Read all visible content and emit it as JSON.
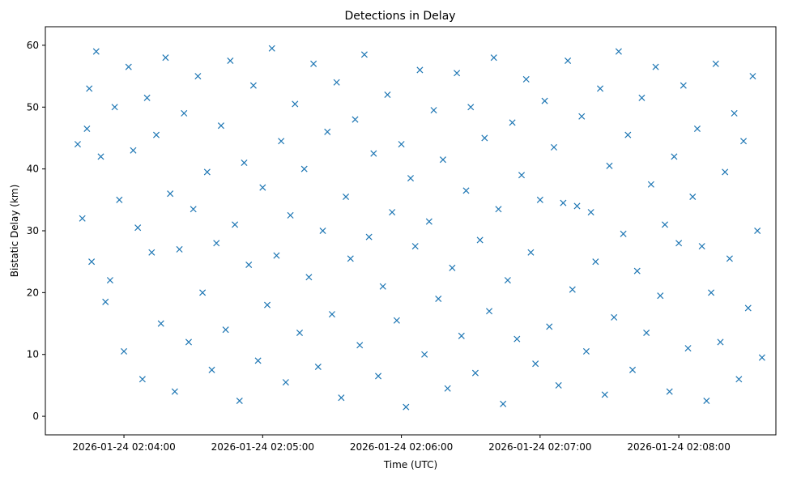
{
  "chart_data": {
    "type": "scatter",
    "title": "Detections in Delay",
    "xlabel": "Time (UTC)",
    "ylabel": "Bistatic Delay (km)",
    "x_range": [
      "2026-01-24 02:03:26",
      "2026-01-24 02:08:42"
    ],
    "ylim": [
      -3,
      63
    ],
    "x_ticks": [
      {
        "value": "2026-01-24 02:04:00",
        "label": "2026-01-24 02:04:00"
      },
      {
        "value": "2026-01-24 02:05:00",
        "label": "2026-01-24 02:05:00"
      },
      {
        "value": "2026-01-24 02:06:00",
        "label": "2026-01-24 02:06:00"
      },
      {
        "value": "2026-01-24 02:07:00",
        "label": "2026-01-24 02:07:00"
      },
      {
        "value": "2026-01-24 02:08:00",
        "label": "2026-01-24 02:08:00"
      }
    ],
    "y_ticks": [
      0,
      10,
      20,
      30,
      40,
      50,
      60
    ],
    "grid": false,
    "legend": "none",
    "series": [
      {
        "marker": "x",
        "color": "#1f77b4",
        "points": [
          [
            "02:03:40",
            44.0
          ],
          [
            "02:03:42",
            32.0
          ],
          [
            "02:03:44",
            46.5
          ],
          [
            "02:03:45",
            53.0
          ],
          [
            "02:03:46",
            25.0
          ],
          [
            "02:03:48",
            59.0
          ],
          [
            "02:03:50",
            42.0
          ],
          [
            "02:03:52",
            18.5
          ],
          [
            "02:03:54",
            22.0
          ],
          [
            "02:03:56",
            50.0
          ],
          [
            "02:03:58",
            35.0
          ],
          [
            "02:04:00",
            10.5
          ],
          [
            "02:04:02",
            56.5
          ],
          [
            "02:04:04",
            43.0
          ],
          [
            "02:04:06",
            30.5
          ],
          [
            "02:04:08",
            6.0
          ],
          [
            "02:04:10",
            51.5
          ],
          [
            "02:04:12",
            26.5
          ],
          [
            "02:04:14",
            45.5
          ],
          [
            "02:04:16",
            15.0
          ],
          [
            "02:04:18",
            58.0
          ],
          [
            "02:04:20",
            36.0
          ],
          [
            "02:04:22",
            4.0
          ],
          [
            "02:04:24",
            27.0
          ],
          [
            "02:04:26",
            49.0
          ],
          [
            "02:04:28",
            12.0
          ],
          [
            "02:04:30",
            33.5
          ],
          [
            "02:04:32",
            55.0
          ],
          [
            "02:04:34",
            20.0
          ],
          [
            "02:04:36",
            39.5
          ],
          [
            "02:04:38",
            7.5
          ],
          [
            "02:04:40",
            28.0
          ],
          [
            "02:04:42",
            47.0
          ],
          [
            "02:04:44",
            14.0
          ],
          [
            "02:04:46",
            57.5
          ],
          [
            "02:04:48",
            31.0
          ],
          [
            "02:04:50",
            2.5
          ],
          [
            "02:04:52",
            41.0
          ],
          [
            "02:04:54",
            24.5
          ],
          [
            "02:04:56",
            53.5
          ],
          [
            "02:04:58",
            9.0
          ],
          [
            "02:05:00",
            37.0
          ],
          [
            "02:05:02",
            18.0
          ],
          [
            "02:05:04",
            59.5
          ],
          [
            "02:05:06",
            26.0
          ],
          [
            "02:05:08",
            44.5
          ],
          [
            "02:05:10",
            5.5
          ],
          [
            "02:05:12",
            32.5
          ],
          [
            "02:05:14",
            50.5
          ],
          [
            "02:05:16",
            13.5
          ],
          [
            "02:05:18",
            40.0
          ],
          [
            "02:05:20",
            22.5
          ],
          [
            "02:05:22",
            57.0
          ],
          [
            "02:05:24",
            8.0
          ],
          [
            "02:05:26",
            30.0
          ],
          [
            "02:05:28",
            46.0
          ],
          [
            "02:05:30",
            16.5
          ],
          [
            "02:05:32",
            54.0
          ],
          [
            "02:05:34",
            3.0
          ],
          [
            "02:05:36",
            35.5
          ],
          [
            "02:05:38",
            25.5
          ],
          [
            "02:05:40",
            48.0
          ],
          [
            "02:05:42",
            11.5
          ],
          [
            "02:05:44",
            58.5
          ],
          [
            "02:05:46",
            29.0
          ],
          [
            "02:05:48",
            42.5
          ],
          [
            "02:05:50",
            6.5
          ],
          [
            "02:05:52",
            21.0
          ],
          [
            "02:05:54",
            52.0
          ],
          [
            "02:05:56",
            33.0
          ],
          [
            "02:05:58",
            15.5
          ],
          [
            "02:06:00",
            44.0
          ],
          [
            "02:06:02",
            1.5
          ],
          [
            "02:06:04",
            38.5
          ],
          [
            "02:06:06",
            27.5
          ],
          [
            "02:06:08",
            56.0
          ],
          [
            "02:06:10",
            10.0
          ],
          [
            "02:06:12",
            31.5
          ],
          [
            "02:06:14",
            49.5
          ],
          [
            "02:06:16",
            19.0
          ],
          [
            "02:06:18",
            41.5
          ],
          [
            "02:06:20",
            4.5
          ],
          [
            "02:06:22",
            24.0
          ],
          [
            "02:06:24",
            55.5
          ],
          [
            "02:06:26",
            13.0
          ],
          [
            "02:06:28",
            36.5
          ],
          [
            "02:06:30",
            50.0
          ],
          [
            "02:06:32",
            7.0
          ],
          [
            "02:06:34",
            28.5
          ],
          [
            "02:06:36",
            45.0
          ],
          [
            "02:06:38",
            17.0
          ],
          [
            "02:06:40",
            58.0
          ],
          [
            "02:06:42",
            33.5
          ],
          [
            "02:06:44",
            2.0
          ],
          [
            "02:06:46",
            22.0
          ],
          [
            "02:06:48",
            47.5
          ],
          [
            "02:06:50",
            12.5
          ],
          [
            "02:06:52",
            39.0
          ],
          [
            "02:06:54",
            54.5
          ],
          [
            "02:06:56",
            26.5
          ],
          [
            "02:06:58",
            8.5
          ],
          [
            "02:07:00",
            35.0
          ],
          [
            "02:07:02",
            51.0
          ],
          [
            "02:07:04",
            14.5
          ],
          [
            "02:07:06",
            43.5
          ],
          [
            "02:07:08",
            5.0
          ],
          [
            "02:07:10",
            34.5
          ],
          [
            "02:07:12",
            57.5
          ],
          [
            "02:07:14",
            20.5
          ],
          [
            "02:07:16",
            34.0
          ],
          [
            "02:07:18",
            48.5
          ],
          [
            "02:07:20",
            10.5
          ],
          [
            "02:07:22",
            33.0
          ],
          [
            "02:07:24",
            25.0
          ],
          [
            "02:07:26",
            53.0
          ],
          [
            "02:07:28",
            3.5
          ],
          [
            "02:07:30",
            40.5
          ],
          [
            "02:07:32",
            16.0
          ],
          [
            "02:07:34",
            59.0
          ],
          [
            "02:07:36",
            29.5
          ],
          [
            "02:07:38",
            45.5
          ],
          [
            "02:07:40",
            7.5
          ],
          [
            "02:07:42",
            23.5
          ],
          [
            "02:07:44",
            51.5
          ],
          [
            "02:07:46",
            13.5
          ],
          [
            "02:07:48",
            37.5
          ],
          [
            "02:07:50",
            56.5
          ],
          [
            "02:07:52",
            19.5
          ],
          [
            "02:07:54",
            31.0
          ],
          [
            "02:07:56",
            4.0
          ],
          [
            "02:07:58",
            42.0
          ],
          [
            "02:08:00",
            28.0
          ],
          [
            "02:08:02",
            53.5
          ],
          [
            "02:08:04",
            11.0
          ],
          [
            "02:08:06",
            35.5
          ],
          [
            "02:08:08",
            46.5
          ],
          [
            "02:08:10",
            27.5
          ],
          [
            "02:08:12",
            2.5
          ],
          [
            "02:08:14",
            20.0
          ],
          [
            "02:08:16",
            57.0
          ],
          [
            "02:08:18",
            12.0
          ],
          [
            "02:08:20",
            39.5
          ],
          [
            "02:08:22",
            25.5
          ],
          [
            "02:08:24",
            49.0
          ],
          [
            "02:08:26",
            6.0
          ],
          [
            "02:08:28",
            44.5
          ],
          [
            "02:08:30",
            17.5
          ],
          [
            "02:08:32",
            55.0
          ],
          [
            "02:08:34",
            30.0
          ],
          [
            "02:08:36",
            9.5
          ]
        ]
      }
    ]
  }
}
